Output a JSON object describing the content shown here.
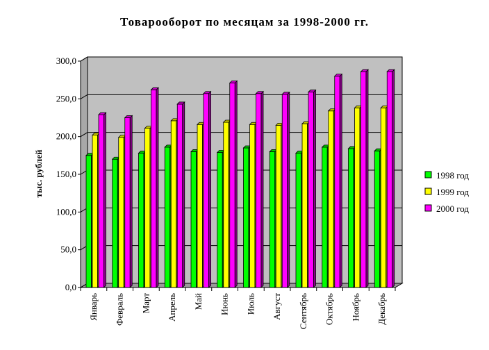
{
  "chart_data": {
    "type": "bar",
    "title": "Товарооборот по месяцам за 1998-2000 гг.",
    "ylabel": "тыс. рублей",
    "xlabel": "",
    "ylim": [
      0,
      300
    ],
    "yticks": [
      "0,0",
      "50,0",
      "100,0",
      "150,0",
      "200,0",
      "250,0",
      "300,0"
    ],
    "ytick_values": [
      0,
      50,
      100,
      150,
      200,
      250,
      300
    ],
    "grid": true,
    "legend_position": "right",
    "categories": [
      "Январь",
      "Февраль",
      "Март",
      "Апрель",
      "Май",
      "Июнь",
      "Июль",
      "Август",
      "Сентябрь",
      "Октябрь",
      "Ноябрь",
      "Декабрь"
    ],
    "series": [
      {
        "name": "1998 год",
        "color": "#00ff00",
        "values": [
          175,
          170,
          178,
          186,
          180,
          179,
          185,
          180,
          178,
          186,
          184,
          181
        ]
      },
      {
        "name": "1999 год",
        "color": "#ffff00",
        "values": [
          202,
          199,
          211,
          221,
          216,
          219,
          216,
          215,
          217,
          234,
          238,
          238
        ]
      },
      {
        "name": "2000 год",
        "color": "#ff00ff",
        "values": [
          229,
          225,
          262,
          243,
          257,
          271,
          257,
          256,
          259,
          280,
          286,
          286
        ]
      }
    ]
  }
}
